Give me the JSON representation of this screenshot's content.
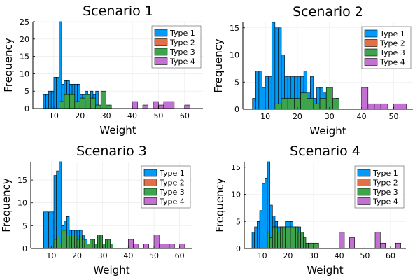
{
  "chart_data": [
    {
      "type": "bar",
      "title": "Scenario 1",
      "xlabel": "Weight",
      "ylabel": "Frequency",
      "xlim": [
        2,
        67
      ],
      "ylim": [
        0,
        25
      ],
      "xticks": [
        10,
        20,
        30,
        40,
        50,
        60
      ],
      "yticks": [
        0,
        5,
        10,
        15,
        20,
        25
      ],
      "grid": true,
      "legend": "top-right",
      "series": [
        {
          "name": "Type 1",
          "color": "#009af9",
          "bins": [
            [
              6,
              7,
              4
            ],
            [
              7,
              8,
              4
            ],
            [
              8,
              9,
              5
            ],
            [
              9,
              10,
              5
            ],
            [
              10,
              11,
              9
            ],
            [
              11,
              12,
              9
            ],
            [
              12,
              13,
              25
            ],
            [
              13,
              14,
              7
            ],
            [
              14,
              15,
              8
            ],
            [
              15,
              16,
              8
            ],
            [
              16,
              17,
              7
            ],
            [
              17,
              18,
              7
            ],
            [
              18,
              19,
              7
            ],
            [
              19,
              20,
              7
            ],
            [
              20,
              21,
              4
            ],
            [
              21,
              22,
              4
            ],
            [
              22,
              23,
              5
            ],
            [
              23,
              24,
              4
            ],
            [
              24,
              25,
              5
            ],
            [
              25,
              26,
              4
            ],
            [
              26,
              27,
              5
            ],
            [
              27,
              28,
              0
            ]
          ]
        },
        {
          "name": "Type 2",
          "color": "#e26f46",
          "bins": []
        },
        {
          "name": "Type 3",
          "color": "#3da44d",
          "bins": [
            [
              12,
              14,
              2
            ],
            [
              14,
              16,
              4
            ],
            [
              16,
              18,
              4
            ],
            [
              18,
              20,
              2
            ],
            [
              20,
              22,
              3
            ],
            [
              22,
              24,
              4
            ],
            [
              24,
              26,
              3
            ],
            [
              26,
              28,
              1
            ],
            [
              28,
              30,
              5
            ],
            [
              30,
              32,
              1
            ]
          ]
        },
        {
          "name": "Type 4",
          "color": "#c271d2",
          "bins": [
            [
              40,
              42,
              2
            ],
            [
              42,
              44,
              0
            ],
            [
              44,
              46,
              1
            ],
            [
              46,
              48,
              0
            ],
            [
              48,
              50,
              2
            ],
            [
              50,
              52,
              1
            ],
            [
              52,
              54,
              2
            ],
            [
              54,
              56,
              2
            ],
            [
              56,
              58,
              0
            ],
            [
              58,
              60,
              0
            ],
            [
              60,
              62,
              1
            ]
          ]
        }
      ]
    },
    {
      "type": "bar",
      "title": "Scenario 2",
      "xlabel": "Weight",
      "ylabel": "Frequency",
      "xlim": [
        3,
        56
      ],
      "ylim": [
        0,
        16
      ],
      "xticks": [
        10,
        20,
        30,
        40,
        50
      ],
      "yticks": [
        0,
        5,
        10,
        15
      ],
      "grid": true,
      "legend": "top-right",
      "series": [
        {
          "name": "Type 1",
          "color": "#009af9",
          "bins": [
            [
              6,
              7,
              2
            ],
            [
              7,
              8,
              7
            ],
            [
              8,
              9,
              7
            ],
            [
              9,
              10,
              4
            ],
            [
              10,
              11,
              6
            ],
            [
              11,
              12,
              6
            ],
            [
              12,
              13,
              16
            ],
            [
              13,
              14,
              15
            ],
            [
              14,
              15,
              15
            ],
            [
              15,
              16,
              10
            ],
            [
              16,
              17,
              6
            ],
            [
              17,
              18,
              6
            ],
            [
              18,
              19,
              6
            ],
            [
              19,
              20,
              6
            ],
            [
              20,
              21,
              6
            ],
            [
              21,
              22,
              6
            ],
            [
              22,
              23,
              7
            ],
            [
              23,
              24,
              3
            ],
            [
              24,
              25,
              6
            ],
            [
              25,
              26,
              2
            ],
            [
              26,
              27,
              4
            ],
            [
              27,
              28,
              4
            ],
            [
              28,
              29,
              3
            ],
            [
              29,
              30,
              3
            ],
            [
              30,
              31,
              1
            ],
            [
              31,
              32,
              1
            ],
            [
              32,
              33,
              2
            ]
          ]
        },
        {
          "name": "Type 2",
          "color": "#e26f46",
          "bins": []
        },
        {
          "name": "Type 3",
          "color": "#3da44d",
          "bins": [
            [
              13,
              15,
              1
            ],
            [
              15,
              17,
              2
            ],
            [
              17,
              19,
              2
            ],
            [
              19,
              21,
              2
            ],
            [
              21,
              23,
              3
            ],
            [
              23,
              25,
              2
            ],
            [
              25,
              27,
              1
            ],
            [
              27,
              29,
              2
            ],
            [
              29,
              31,
              4
            ],
            [
              31,
              33,
              2
            ]
          ]
        },
        {
          "name": "Type 4",
          "color": "#c271d2",
          "bins": [
            [
              40,
              42,
              4
            ],
            [
              42,
              44,
              1
            ],
            [
              44,
              46,
              1
            ],
            [
              46,
              48,
              1
            ],
            [
              48,
              50,
              0
            ],
            [
              50,
              52,
              1
            ],
            [
              52,
              54,
              1
            ]
          ]
        }
      ]
    },
    {
      "type": "bar",
      "title": "Scenario 3",
      "xlabel": "Weight",
      "ylabel": "Frequency",
      "xlim": [
        2,
        65
      ],
      "ylim": [
        0,
        19
      ],
      "xticks": [
        10,
        20,
        30,
        40,
        50,
        60
      ],
      "yticks": [
        0,
        5,
        10,
        15
      ],
      "grid": true,
      "legend": "top-right",
      "series": [
        {
          "name": "Type 1",
          "color": "#009af9",
          "bins": [
            [
              7,
              9,
              8
            ],
            [
              9,
              11,
              8
            ],
            [
              11,
              12,
              16
            ],
            [
              12,
              13,
              17
            ],
            [
              13,
              14,
              19
            ],
            [
              14,
              15,
              5
            ],
            [
              15,
              16,
              6
            ],
            [
              16,
              17,
              7
            ],
            [
              17,
              18,
              4
            ],
            [
              18,
              19,
              4
            ],
            [
              19,
              20,
              4
            ],
            [
              20,
              21,
              4
            ],
            [
              21,
              22,
              4
            ],
            [
              22,
              23,
              3
            ],
            [
              23,
              24,
              2
            ]
          ]
        },
        {
          "name": "Type 2",
          "color": "#e26f46",
          "bins": []
        },
        {
          "name": "Type 3",
          "color": "#3da44d",
          "bins": [
            [
              11,
              12,
              2
            ],
            [
              12,
              13,
              3
            ],
            [
              13,
              14,
              1
            ],
            [
              14,
              15,
              4
            ],
            [
              15,
              16,
              4
            ],
            [
              16,
              17,
              3
            ],
            [
              17,
              18,
              3
            ],
            [
              18,
              19,
              3
            ],
            [
              19,
              20,
              3
            ],
            [
              20,
              21,
              2
            ],
            [
              21,
              22,
              3
            ],
            [
              22,
              23,
              2
            ],
            [
              23,
              24,
              1
            ],
            [
              24,
              25,
              1
            ],
            [
              25,
              26,
              2
            ],
            [
              26,
              27,
              2
            ],
            [
              27,
              28,
              1
            ],
            [
              28,
              29,
              3
            ],
            [
              29,
              30,
              3
            ],
            [
              30,
              31,
              1
            ],
            [
              31,
              32,
              2
            ],
            [
              32,
              33,
              2
            ],
            [
              33,
              34,
              1
            ]
          ]
        },
        {
          "name": "Type 4",
          "color": "#c271d2",
          "bins": [
            [
              40,
              42,
              2
            ],
            [
              42,
              44,
              1
            ],
            [
              44,
              46,
              0
            ],
            [
              46,
              48,
              1
            ],
            [
              48,
              50,
              0
            ],
            [
              50,
              52,
              3
            ],
            [
              52,
              54,
              1
            ],
            [
              54,
              56,
              1
            ],
            [
              56,
              58,
              1
            ],
            [
              58,
              60,
              0
            ],
            [
              60,
              62,
              1
            ],
            [
              62,
              64,
              0
            ]
          ]
        }
      ]
    },
    {
      "type": "bar",
      "title": "Scenario 4",
      "xlabel": "Weight",
      "ylabel": "Frequency",
      "xlim": [
        3,
        66
      ],
      "ylim": [
        0,
        16
      ],
      "xticks": [
        10,
        20,
        30,
        40,
        50,
        60
      ],
      "yticks": [
        0,
        5,
        10,
        15
      ],
      "grid": true,
      "legend": "top-right",
      "series": [
        {
          "name": "Type 1",
          "color": "#009af9",
          "bins": [
            [
              6,
              7,
              3
            ],
            [
              7,
              8,
              4
            ],
            [
              8,
              9,
              5
            ],
            [
              9,
              10,
              7
            ],
            [
              10,
              11,
              12
            ],
            [
              11,
              12,
              13
            ],
            [
              12,
              13,
              16
            ],
            [
              13,
              14,
              8
            ],
            [
              14,
              15,
              6
            ],
            [
              15,
              16,
              5
            ],
            [
              16,
              17,
              4
            ],
            [
              17,
              18,
              4
            ],
            [
              18,
              19,
              4
            ],
            [
              19,
              20,
              5
            ],
            [
              20,
              21,
              5
            ],
            [
              21,
              22,
              5
            ],
            [
              22,
              23,
              4
            ],
            [
              23,
              24,
              4
            ],
            [
              24,
              25,
              4
            ],
            [
              25,
              26,
              3
            ]
          ]
        },
        {
          "name": "Type 2",
          "color": "#e26f46",
          "bins": []
        },
        {
          "name": "Type 3",
          "color": "#3da44d",
          "bins": [
            [
              12,
              13,
              3
            ],
            [
              13,
              14,
              2
            ],
            [
              14,
              15,
              4
            ],
            [
              15,
              16,
              4
            ],
            [
              16,
              17,
              3
            ],
            [
              17,
              18,
              4
            ],
            [
              18,
              19,
              4
            ],
            [
              19,
              20,
              4
            ],
            [
              20,
              21,
              4
            ],
            [
              21,
              22,
              4
            ],
            [
              22,
              23,
              4
            ],
            [
              23,
              24,
              4
            ],
            [
              24,
              25,
              3
            ],
            [
              25,
              26,
              3
            ],
            [
              26,
              27,
              2
            ],
            [
              27,
              28,
              1
            ],
            [
              28,
              29,
              1
            ],
            [
              29,
              30,
              1
            ],
            [
              30,
              31,
              1
            ],
            [
              31,
              32,
              1
            ]
          ]
        },
        {
          "name": "Type 4",
          "color": "#c271d2",
          "bins": [
            [
              40,
              42,
              3
            ],
            [
              42,
              44,
              0
            ],
            [
              44,
              46,
              2
            ],
            [
              46,
              48,
              0
            ],
            [
              48,
              50,
              0
            ],
            [
              50,
              52,
              0
            ],
            [
              52,
              54,
              0
            ],
            [
              54,
              56,
              3
            ],
            [
              56,
              58,
              1
            ],
            [
              58,
              60,
              0
            ],
            [
              60,
              62,
              0
            ],
            [
              62,
              64,
              1
            ]
          ]
        }
      ]
    }
  ]
}
